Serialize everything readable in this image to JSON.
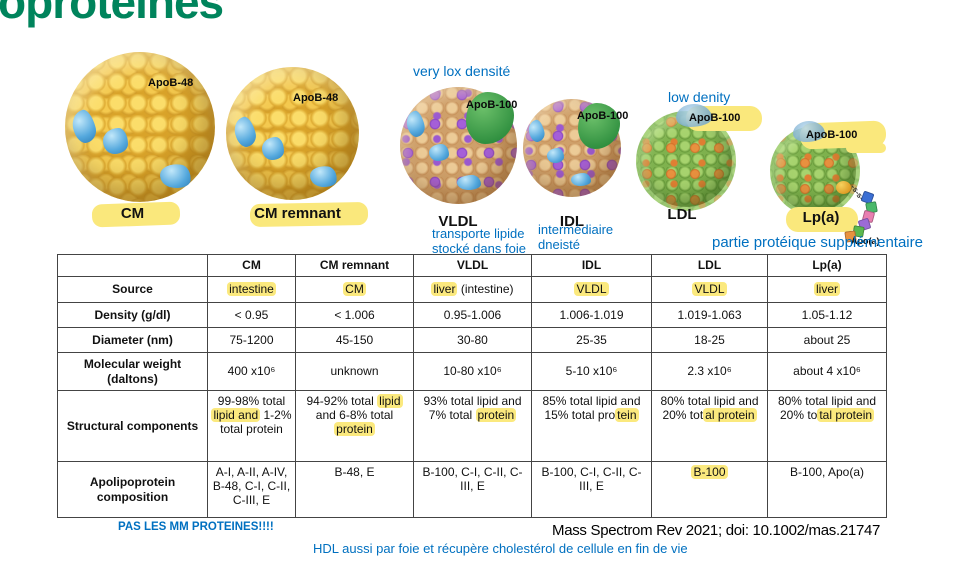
{
  "title": "oprotéines",
  "colors": {
    "title_green": "#00845C",
    "annotation_blue": "#0070C0",
    "highlight_yellow": "#FBE97E"
  },
  "figure": {
    "particles": [
      {
        "name": "CM",
        "apo_label": "ApoB-48"
      },
      {
        "name": "CM remnant",
        "apo_label": "ApoB-48"
      },
      {
        "name": "VLDL",
        "apo_label": "ApoB-100"
      },
      {
        "name": "IDL",
        "apo_label": "ApoB-100"
      },
      {
        "name": "LDL",
        "apo_label": "ApoB-100"
      },
      {
        "name": "Lp(a)",
        "apo_label": "ApoB-100"
      }
    ],
    "tail": {
      "ss": "-s-s-",
      "label": "Apo(a)"
    }
  },
  "annotations": {
    "very_low": "very lox densité",
    "low": "low denity",
    "vldl_line1": "transporte lipide",
    "vldl_line2": "stocké dans foie",
    "idl_line1": "intermédiaire",
    "idl_line2": "dneisté",
    "lpa": "partie protéique supplémentaire",
    "bottom_left": "PAS LES MM PROTEINES!!!!",
    "bottom_center": "HDL aussi par foie et récupère cholestérol de cellule en fin de vie"
  },
  "citation": "Mass Spectrom Rev 2021; doi: 10.1002/mas.21747",
  "table": {
    "columns": [
      "",
      "CM",
      "CM remnant",
      "VLDL",
      "IDL",
      "LDL",
      "Lp(a)"
    ],
    "rows": [
      {
        "label": "Source",
        "cells": [
          {
            "t": "intestine",
            "hl": [
              "intestine"
            ]
          },
          {
            "t": "CM",
            "hl": [
              "CM"
            ]
          },
          {
            "t": "liver (intestine)",
            "hl": [
              "liver"
            ]
          },
          {
            "t": "VLDL",
            "hl": [
              "VLDL"
            ]
          },
          {
            "t": "VLDL",
            "hl": [
              "VLDL"
            ]
          },
          {
            "t": "liver",
            "hl": [
              "liver"
            ]
          }
        ]
      },
      {
        "label": "Density (g/dl)",
        "cells": [
          {
            "t": "< 0.95"
          },
          {
            "t": "< 1.006"
          },
          {
            "t": "0.95-1.006"
          },
          {
            "t": "1.006-1.019"
          },
          {
            "t": "1.019-1.063"
          },
          {
            "t": "1.05-1.12"
          }
        ]
      },
      {
        "label": "Diameter (nm)",
        "cells": [
          {
            "t": "75-1200"
          },
          {
            "t": "45-150"
          },
          {
            "t": "30-80"
          },
          {
            "t": "25-35"
          },
          {
            "t": "18-25"
          },
          {
            "t": "about 25"
          }
        ]
      },
      {
        "label": "Molecular weight (daltons)",
        "cells": [
          {
            "t": "400 x10⁶"
          },
          {
            "t": "unknown"
          },
          {
            "t": "10-80 x10⁶"
          },
          {
            "t": "5-10 x10⁶"
          },
          {
            "t": "2.3 x10⁶"
          },
          {
            "t": "about 4 x10⁶"
          }
        ]
      },
      {
        "label": "Structural components",
        "cells": [
          {
            "t": "99-98% total lipid and 1-2% total protein",
            "hl": [
              "lipid and"
            ]
          },
          {
            "t": "94-92% total lipid and 6-8% total protein",
            "hl": [
              "lipid",
              "protein"
            ]
          },
          {
            "t": "93% total lipid and 7% total protein",
            "hl": [
              "protein"
            ]
          },
          {
            "t": "85% total lipid and 15% total protein",
            "hl": [
              "tein"
            ]
          },
          {
            "t": "80% total lipid and 20% total protein",
            "hl": [
              "al protein"
            ]
          },
          {
            "t": "80% total lipid and 20% total protein",
            "hl": [
              "tal protein"
            ]
          }
        ]
      },
      {
        "label": "Apolipoprotein composition",
        "cells": [
          {
            "t": "A-I, A-II, A-IV, B-48, C-I, C-II, C-III, E"
          },
          {
            "t": "B-48, E"
          },
          {
            "t": "B-100, C-I, C-II, C-III, E"
          },
          {
            "t": "B-100, C-I, C-II, C-III, E"
          },
          {
            "t": "B-100",
            "hl": [
              "B-100"
            ]
          },
          {
            "t": "B-100, Apo(a)"
          }
        ]
      }
    ]
  }
}
